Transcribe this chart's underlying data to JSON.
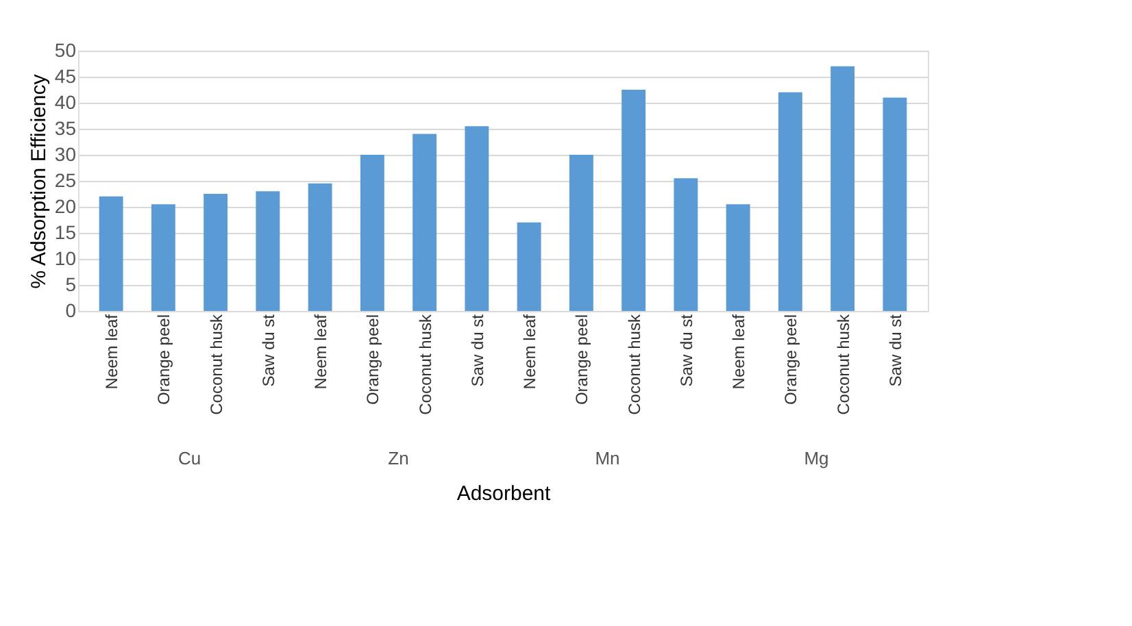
{
  "chart_data": {
    "type": "bar",
    "xlabel": "Adsorbent",
    "ylabel": "% Adsorption Efficiency",
    "categories": [
      "Neem leaf",
      "Orange peel",
      "Coconut husk",
      "Saw du st",
      "Neem leaf",
      "Orange peel",
      "Coconut husk",
      "Saw du st",
      "Neem leaf",
      "Orange peel",
      "Coconut husk",
      "Saw du st",
      "Neem leaf",
      "Orange peel",
      "Coconut husk",
      "Saw du st"
    ],
    "values": [
      22,
      20.5,
      22.5,
      23,
      24.5,
      30,
      34,
      35.5,
      17,
      30,
      42.5,
      25.5,
      20.5,
      42,
      47,
      41
    ],
    "color": "#5b9bd5",
    "annotations": [
      "Cu",
      "Zn",
      "Mn",
      "Mg"
    ],
    "ylim": [
      0,
      50
    ],
    "yticks": [
      0,
      5,
      10,
      15,
      20,
      25,
      30,
      35,
      40,
      45,
      50
    ],
    "grid": "y"
  }
}
